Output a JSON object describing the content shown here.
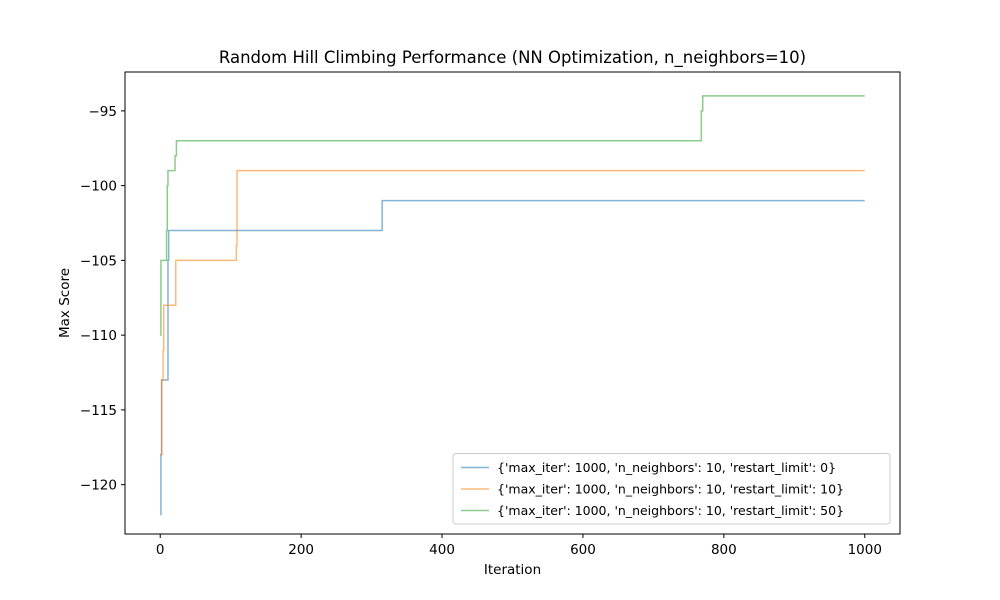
{
  "chart_data": {
    "type": "line",
    "title": "Random Hill Climbing Performance (NN Optimization, n_neighbors=10)",
    "xlabel": "Iteration",
    "ylabel": "Max Score",
    "xlim": [
      -50,
      1050
    ],
    "ylim": [
      -123.3,
      -92.4
    ],
    "xticks": [
      0,
      200,
      400,
      600,
      800,
      1000
    ],
    "yticks": [
      -120,
      -115,
      -110,
      -105,
      -100,
      -95
    ],
    "xtick_labels": [
      "0",
      "200",
      "400",
      "600",
      "800",
      "1000"
    ],
    "ytick_labels": [
      "−120",
      "−115",
      "−110",
      "−105",
      "−100",
      "−95"
    ],
    "grid": false,
    "legend_position": "lower-right",
    "series": [
      {
        "name": "{'max_iter': 1000, 'n_neighbors': 10, 'restart_limit': 0}",
        "color": "#1f77b4",
        "x": [
          0,
          1,
          2,
          10,
          11,
          12,
          314,
          315,
          1000
        ],
        "y": [
          -122,
          -118,
          -113,
          -113,
          -105,
          -103,
          -103,
          -101,
          -101
        ]
      },
      {
        "name": "{'max_iter': 1000, 'n_neighbors': 10, 'restart_limit': 10}",
        "color": "#ff7f0e",
        "x": [
          0,
          1,
          2,
          3,
          4,
          5,
          6,
          21,
          22,
          107,
          108,
          109,
          1000
        ],
        "y": [
          -118,
          -118,
          -113,
          -113,
          -111,
          -108,
          -108,
          -108,
          -105,
          -105,
          -104,
          -99,
          -99
        ]
      },
      {
        "name": "{'max_iter': 1000, 'n_neighbors': 10, 'restart_limit': 50}",
        "color": "#2ca02c",
        "x": [
          0,
          1,
          8,
          9,
          10,
          11,
          20,
          21,
          22,
          23,
          767,
          768,
          770,
          1000
        ],
        "y": [
          -110,
          -105,
          -105,
          -103,
          -100,
          -99,
          -99,
          -98,
          -98,
          -97,
          -97,
          -95,
          -94,
          -94
        ]
      }
    ]
  }
}
